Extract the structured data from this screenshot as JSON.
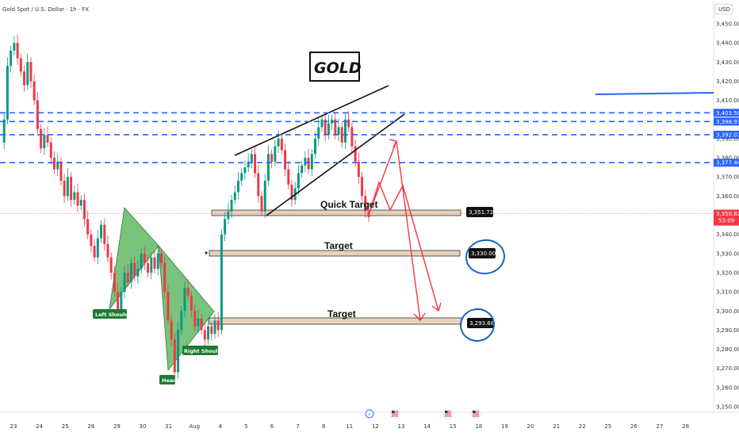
{
  "chart_data": {
    "type": "candlestick",
    "title": "Gold Spot / U.S. Dollar · 1h · FX",
    "currency": "USD",
    "colors": {
      "up": "#089981",
      "down": "#f23645",
      "level": "#2962ff",
      "arrow": "#f23645",
      "pattern": "#4caf50",
      "badge": "#1b7a34"
    },
    "y_axis": {
      "min": 3245,
      "max": 3455,
      "ticks": [
        "3,450.00",
        "3,440.00",
        "3,430.00",
        "3,420.00",
        "3,410.00",
        "3,400.00",
        "3,390.00",
        "3,380.00",
        "3,370.00",
        "3,360.00",
        "3,350.00",
        "3,340.00",
        "3,330.00",
        "3,320.00",
        "3,310.00",
        "3,300.00",
        "3,290.00",
        "3,280.00",
        "3,270.00",
        "3,260.00",
        "3,250.00"
      ]
    },
    "x_axis": {
      "ticks": [
        "23",
        "24",
        "25",
        "28",
        "29",
        "30",
        "31",
        "Aug",
        "4",
        "5",
        "6",
        "7",
        "8",
        "11",
        "12",
        "13",
        "14",
        "15",
        "18",
        "19",
        "20",
        "21",
        "22",
        "25",
        "26",
        "27",
        "28"
      ]
    },
    "price_labels": [
      {
        "text": "3,403.50",
        "value": 3403.5
      },
      {
        "text": "3,398.93",
        "value": 3398.93
      },
      {
        "text": "3,392.07",
        "value": 3392.07
      },
      {
        "text": "3,377.44",
        "value": 3377.44
      }
    ],
    "current_price": {
      "price": "3,350.82",
      "countdown": "53:09",
      "value": 3350.82
    },
    "targets": [
      {
        "label": "Quick Target",
        "price": "3,351.72",
        "value": 3351.72
      },
      {
        "label": "Target",
        "price": "3,330.00",
        "value": 3330.0
      },
      {
        "label": "Target",
        "price": "3,293.68",
        "value": 3293.68
      }
    ],
    "pattern_labels": {
      "left": "Left Shoulder",
      "head": "Head",
      "right": "Right Shoulder"
    },
    "badge_title": "GOLD",
    "prices": [
      3388,
      3400,
      3428,
      3436,
      3440,
      3432,
      3425,
      3418,
      3430,
      3420,
      3410,
      3395,
      3385,
      3392,
      3388,
      3380,
      3374,
      3378,
      3368,
      3360,
      3370,
      3358,
      3362,
      3355,
      3358,
      3348,
      3340,
      3334,
      3328,
      3338,
      3345,
      3335,
      3328,
      3320,
      3310,
      3300,
      3310,
      3320,
      3315,
      3325,
      3318,
      3322,
      3330,
      3325,
      3320,
      3328,
      3322,
      3330,
      3325,
      3310,
      3295,
      3285,
      3268,
      3290,
      3300,
      3312,
      3308,
      3300,
      3292,
      3296,
      3290,
      3285,
      3292,
      3288,
      3295,
      3290,
      3340,
      3348,
      3352,
      3358,
      3362,
      3368,
      3372,
      3375,
      3378,
      3382,
      3372,
      3360,
      3352,
      3368,
      3382,
      3378,
      3386,
      3390,
      3384,
      3374,
      3366,
      3358,
      3364,
      3372,
      3376,
      3380,
      3374,
      3382,
      3390,
      3396,
      3400,
      3392,
      3398,
      3400,
      3392,
      3396,
      3388,
      3400,
      3396,
      3386,
      3378,
      3370,
      3360,
      3352,
      3349
    ]
  }
}
